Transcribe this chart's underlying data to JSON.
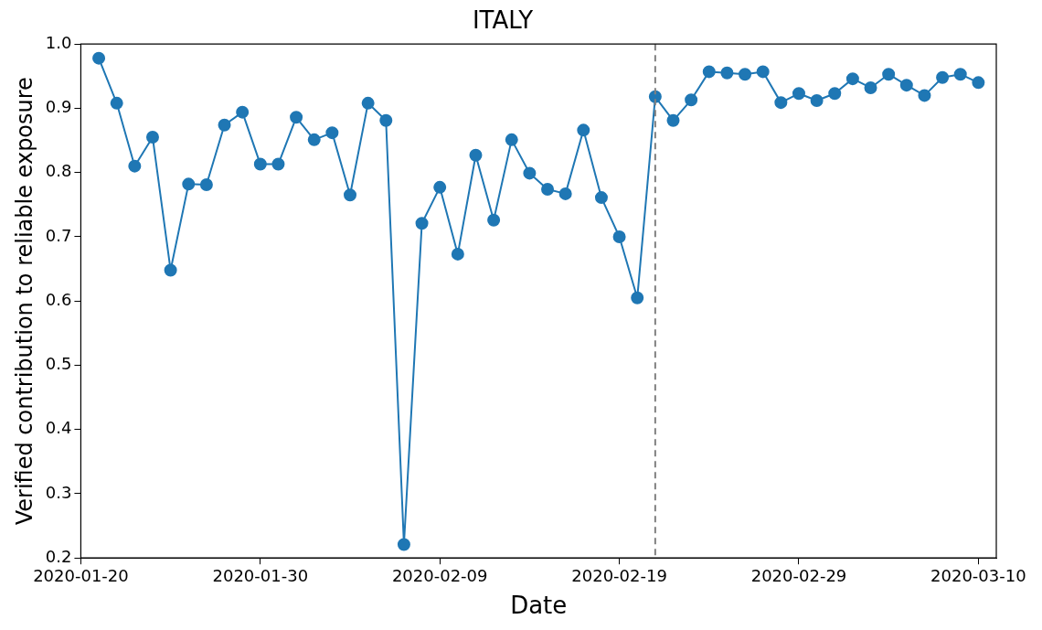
{
  "chart_data": {
    "type": "line",
    "title": "ITALY",
    "xlabel": "Date",
    "ylabel": "Verified contribution to reliable exposure",
    "x": [
      "2020-01-21",
      "2020-01-22",
      "2020-01-23",
      "2020-01-24",
      "2020-01-25",
      "2020-01-26",
      "2020-01-27",
      "2020-01-28",
      "2020-01-29",
      "2020-01-30",
      "2020-01-31",
      "2020-02-01",
      "2020-02-02",
      "2020-02-03",
      "2020-02-04",
      "2020-02-05",
      "2020-02-06",
      "2020-02-07",
      "2020-02-08",
      "2020-02-09",
      "2020-02-10",
      "2020-02-11",
      "2020-02-12",
      "2020-02-13",
      "2020-02-14",
      "2020-02-15",
      "2020-02-16",
      "2020-02-17",
      "2020-02-18",
      "2020-02-19",
      "2020-02-20",
      "2020-02-21",
      "2020-02-22",
      "2020-02-23",
      "2020-02-24",
      "2020-02-25",
      "2020-02-26",
      "2020-02-27",
      "2020-02-28",
      "2020-02-29",
      "2020-03-01",
      "2020-03-02",
      "2020-03-03",
      "2020-03-04",
      "2020-03-05",
      "2020-03-06",
      "2020-03-07",
      "2020-03-08",
      "2020-03-09",
      "2020-03-10"
    ],
    "series": [
      {
        "color": "#1f77b4",
        "values": [
          0.978,
          0.908,
          0.81,
          0.855,
          0.648,
          0.782,
          0.781,
          0.874,
          0.894,
          0.813,
          0.813,
          0.886,
          0.851,
          0.862,
          0.765,
          0.908,
          0.881,
          0.221,
          0.721,
          0.777,
          0.673,
          0.827,
          0.726,
          0.851,
          0.799,
          0.774,
          0.767,
          0.866,
          0.761,
          0.7,
          0.605,
          0.918,
          0.881,
          0.913,
          0.957,
          0.955,
          0.953,
          0.957,
          0.909,
          0.923,
          0.912,
          0.923,
          0.946,
          0.932,
          0.953,
          0.936,
          0.92,
          0.948,
          0.953,
          0.94
        ]
      }
    ],
    "xlim": [
      "2020-01-20",
      "2020-03-11"
    ],
    "xticks": [
      "2020-01-20",
      "2020-01-30",
      "2020-02-09",
      "2020-02-19",
      "2020-02-29",
      "2020-03-10"
    ],
    "ylim": [
      0.2,
      1.0
    ],
    "yticks": [
      0.2,
      0.3,
      0.4,
      0.5,
      0.6,
      0.7,
      0.8,
      0.9,
      {
        "value": 1.0,
        "label": "1.0"
      }
    ],
    "ref_lines": [
      {
        "axis": "x",
        "value": "2020-02-21",
        "color": "#808080",
        "line_style": "dashed"
      }
    ],
    "marker": "circle",
    "line_style": "solid",
    "grid": false,
    "legend": false
  }
}
